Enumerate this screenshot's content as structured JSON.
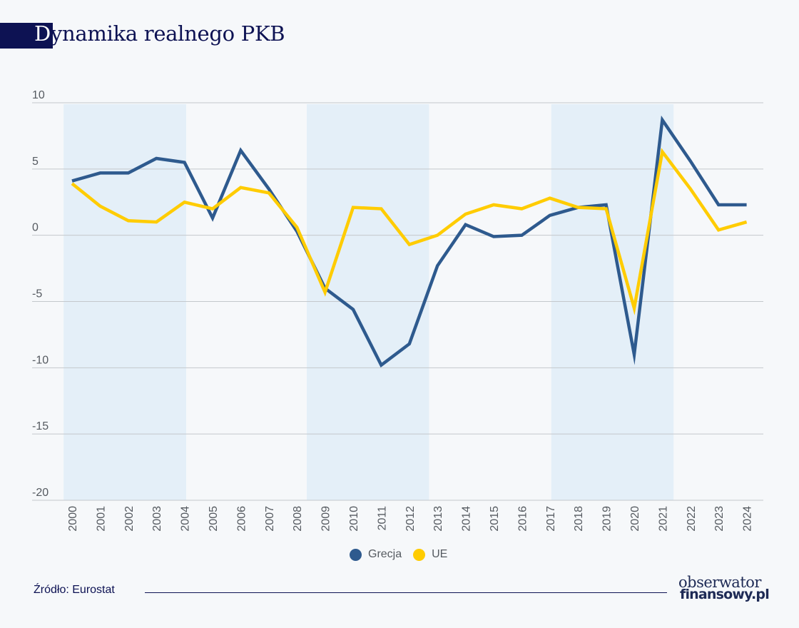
{
  "header": {
    "title_first_letter": "D",
    "title_rest": "ynamika realnego PKB"
  },
  "footer": {
    "source": "Źródło: Eurostat",
    "logo_line1": "obserwator",
    "logo_line2": "finansowy.pl"
  },
  "colors": {
    "grecja": "#2e5a8e",
    "ue": "#ffcc00",
    "band": "#e4eff8",
    "grid": "#c4c8cc",
    "brand": "#0d1253"
  },
  "chart_data": {
    "type": "line",
    "title": "Dynamika realnego PKB",
    "xlabel": "",
    "ylabel": "",
    "x": [
      "2000",
      "2001",
      "2002",
      "2003",
      "2004",
      "2005",
      "2006",
      "2007",
      "2008",
      "2009",
      "2010",
      "2011",
      "2012",
      "2013",
      "2014",
      "2015",
      "2016",
      "2017",
      "2018",
      "2019",
      "2020",
      "2021",
      "2022",
      "2023",
      "2024"
    ],
    "ylim": [
      -20,
      10
    ],
    "yticks": [
      10,
      5,
      0,
      -5,
      -10,
      -15,
      -20
    ],
    "ytick_labels": [
      "10",
      "5",
      "0",
      "-5",
      "-10",
      "-15",
      "-20"
    ],
    "grid": true,
    "legend_position": "bottom-center",
    "shaded_periods": [
      {
        "start": 1999.7,
        "end": 2004.06
      },
      {
        "start": 2008.35,
        "end": 2012.7
      },
      {
        "start": 2017.05,
        "end": 2021.4
      }
    ],
    "series": [
      {
        "name": "Grecja",
        "color": "#2e5a8e",
        "values": [
          4.1,
          4.7,
          4.7,
          5.8,
          5.5,
          1.3,
          6.4,
          3.5,
          0.3,
          -4.0,
          -5.6,
          -9.8,
          -8.2,
          -2.3,
          0.8,
          -0.1,
          0.0,
          1.5,
          2.1,
          2.3,
          -9.0,
          8.7,
          5.6,
          2.3,
          2.3
        ]
      },
      {
        "name": "UE",
        "color": "#ffcc00",
        "values": [
          3.9,
          2.2,
          1.1,
          1.0,
          2.5,
          2.0,
          3.6,
          3.2,
          0.6,
          -4.3,
          2.1,
          2.0,
          -0.7,
          0.0,
          1.6,
          2.3,
          2.0,
          2.8,
          2.1,
          2.0,
          -5.5,
          6.3,
          3.5,
          0.4,
          1.0
        ]
      }
    ]
  }
}
